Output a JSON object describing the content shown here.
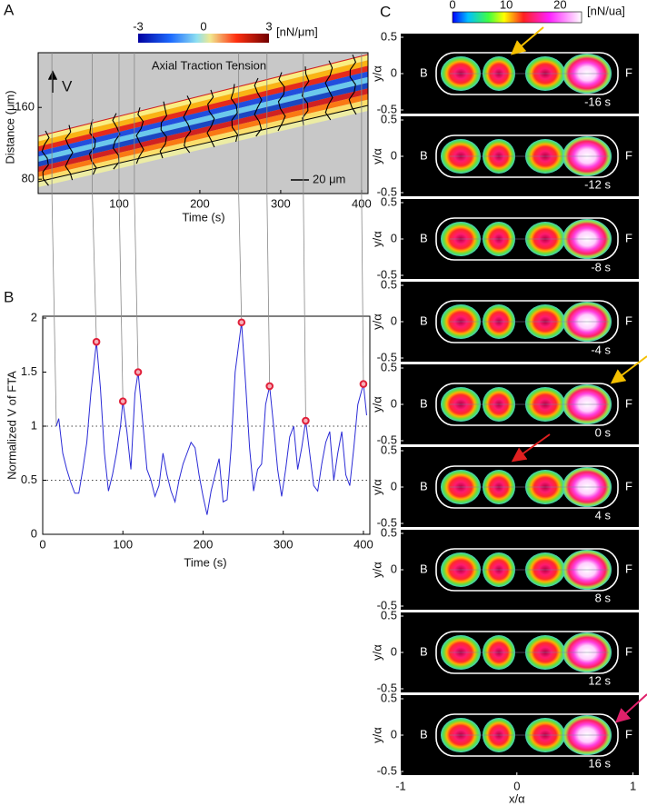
{
  "panel_labels": [
    "A",
    "B",
    "C"
  ],
  "chart_data": [
    {
      "type": "heatmap",
      "title": "Axial Traction Tension",
      "x_label": "Time (s)",
      "y_label": "Distance (μm)",
      "xlim": [
        0,
        408
      ],
      "xticks": [
        100,
        200,
        300,
        400
      ],
      "ylim": [
        64,
        221
      ],
      "yticks": [
        80,
        160
      ],
      "annotations": [
        "V",
        "20 μm"
      ],
      "colorbar": {
        "range": [
          -3,
          3
        ],
        "ticks": [
          -3,
          0,
          3
        ],
        "unit": "[nN/μm]"
      }
    },
    {
      "type": "line",
      "x_label": "Time (s)",
      "y_label": "Normalized V of FTA",
      "xlim": [
        0,
        408
      ],
      "ylim": [
        0,
        2
      ],
      "xticks": [
        0,
        100,
        200,
        300,
        400
      ],
      "yticks": [
        0,
        0.5,
        1,
        1.5,
        2
      ],
      "reference_lines": [
        0.5,
        1
      ],
      "series": [
        {
          "type": "line",
          "color": "#2b2bd6",
          "x": [
            17,
            20,
            25,
            30,
            35,
            40,
            45,
            50,
            55,
            60,
            67,
            72,
            77,
            82,
            87,
            92,
            97,
            100,
            105,
            110,
            115,
            119,
            124,
            130,
            135,
            140,
            145,
            150,
            155,
            160,
            165,
            170,
            175,
            180,
            185,
            190,
            195,
            200,
            205,
            210,
            215,
            220,
            225,
            230,
            235,
            240,
            248,
            253,
            258,
            263,
            268,
            273,
            278,
            283,
            288,
            293,
            298,
            303,
            308,
            313,
            318,
            323,
            328,
            333,
            338,
            343,
            348,
            353,
            358,
            363,
            368,
            373,
            378,
            383,
            388,
            393,
            400,
            404
          ],
          "values": [
            1.0,
            1.07,
            0.75,
            0.6,
            0.48,
            0.38,
            0.38,
            0.6,
            0.85,
            1.3,
            1.78,
            1.35,
            0.75,
            0.4,
            0.55,
            0.75,
            1.0,
            1.23,
            0.95,
            0.6,
            1.3,
            1.5,
            1.1,
            0.6,
            0.5,
            0.35,
            0.45,
            0.75,
            0.55,
            0.4,
            0.3,
            0.5,
            0.65,
            0.75,
            0.85,
            0.8,
            0.55,
            0.35,
            0.18,
            0.4,
            0.55,
            0.7,
            0.3,
            0.32,
            0.8,
            1.5,
            1.96,
            1.4,
            0.8,
            0.4,
            0.6,
            0.65,
            1.2,
            1.37,
            1.0,
            0.6,
            0.35,
            0.6,
            0.9,
            1.0,
            0.6,
            0.8,
            1.05,
            0.75,
            0.45,
            0.4,
            0.65,
            0.85,
            0.95,
            0.5,
            0.75,
            0.95,
            0.55,
            0.45,
            0.8,
            1.2,
            1.39,
            1.1
          ]
        },
        {
          "type": "scatter",
          "color": "#e0203a",
          "x": [
            67,
            100,
            119,
            248,
            283,
            328,
            400
          ],
          "values": [
            1.78,
            1.23,
            1.5,
            1.96,
            1.37,
            1.05,
            1.39
          ]
        }
      ]
    },
    {
      "type": "image_grid",
      "x_label": "x/α",
      "y_label": "y/α",
      "xlim": [
        -1,
        1.05
      ],
      "xticks": [
        -1,
        0,
        1
      ],
      "ylim": [
        -0.55,
        0.55
      ],
      "yticks": [
        0.5,
        0,
        -0.5
      ],
      "side_labels": [
        "B",
        "F"
      ],
      "frame_labels": [
        "-16 s",
        "-12 s",
        "-8 s",
        "-4 s",
        "0 s",
        "4 s",
        "8 s",
        "12 s",
        "16 s"
      ],
      "colorbar": {
        "range": [
          0,
          24
        ],
        "ticks": [
          0,
          10,
          20
        ],
        "unit": "[nN/ua]"
      }
    }
  ]
}
